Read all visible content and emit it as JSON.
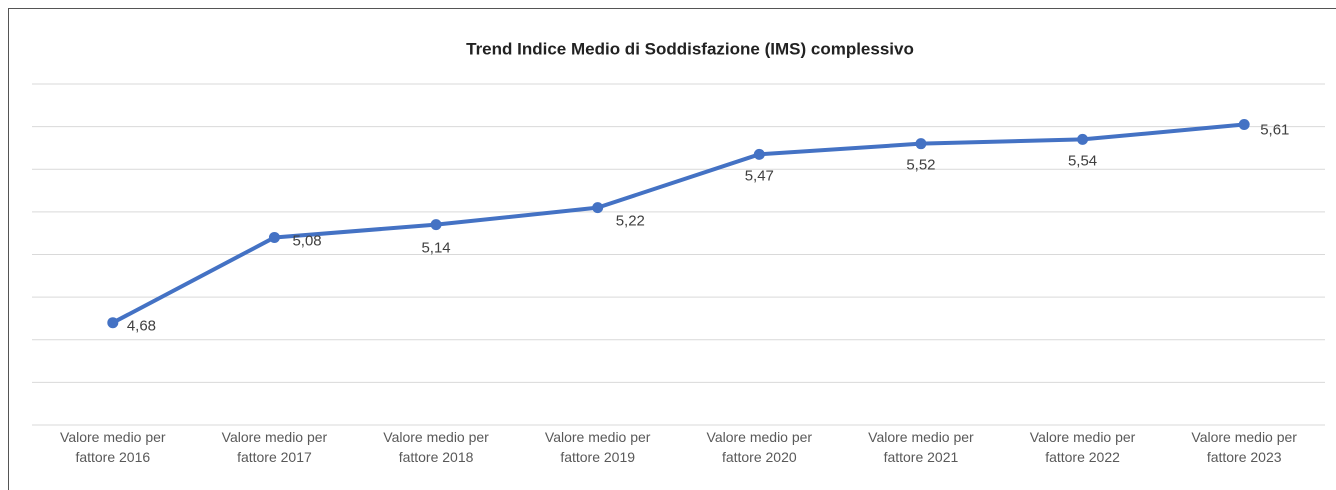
{
  "chart_data": {
    "type": "line",
    "title": "Trend Indice Medio di Soddisfazione (IMS) complessivo",
    "categories": [
      "Valore medio per fattore 2016",
      "Valore medio per fattore 2017",
      "Valore medio per fattore 2018",
      "Valore medio per fattore 2019",
      "Valore medio per fattore 2020",
      "Valore medio per fattore 2021",
      "Valore medio per fattore 2022",
      "Valore medio per fattore 2023"
    ],
    "values": [
      4.68,
      5.08,
      5.14,
      5.22,
      5.47,
      5.52,
      5.54,
      5.61
    ],
    "value_labels": [
      "4,68",
      "5,08",
      "5,14",
      "5,22",
      "5,47",
      "5,52",
      "5,54",
      "5,61"
    ],
    "color": "#4472c4",
    "ylim": [
      4.2,
      5.8
    ],
    "yticks": [
      4.2,
      4.4,
      4.6,
      4.8,
      5.0,
      5.2,
      5.4,
      5.6,
      5.8
    ],
    "grid": true
  }
}
